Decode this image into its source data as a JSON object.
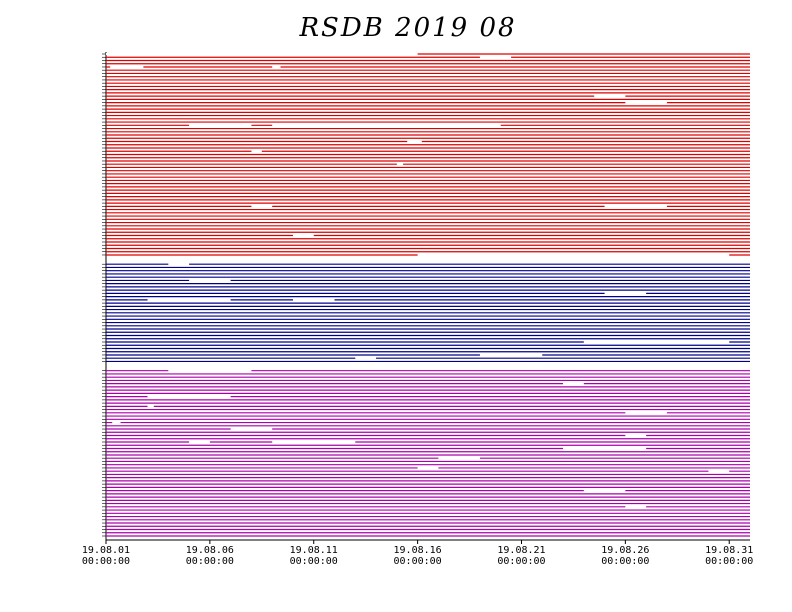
{
  "chart_data": {
    "type": "availability",
    "title": "RSDB 2019 08",
    "xlim": [
      1,
      32
    ],
    "xticks": [
      {
        "value": 1,
        "label": "19.08.01",
        "time": "00:00:00"
      },
      {
        "value": 6,
        "label": "19.08.06",
        "time": "00:00:00"
      },
      {
        "value": 11,
        "label": "19.08.11",
        "time": "00:00:00"
      },
      {
        "value": 16,
        "label": "19.08.16",
        "time": "00:00:00"
      },
      {
        "value": 21,
        "label": "19.08.21",
        "time": "00:00:00"
      },
      {
        "value": 26,
        "label": "19.08.26",
        "time": "00:00:00"
      },
      {
        "value": 31,
        "label": "19.08.31",
        "time": "00:00:00"
      }
    ],
    "groups": [
      {
        "color": "#dd0000",
        "rows": 63,
        "gaps": [
          [
            0,
            1,
            16
          ],
          [
            1,
            19,
            20.5
          ],
          [
            4,
            1.2,
            2.8
          ],
          [
            4,
            9,
            9.4
          ],
          [
            13,
            24.5,
            26
          ],
          [
            15,
            26,
            28
          ],
          [
            22,
            5,
            8
          ],
          [
            22,
            9,
            20
          ],
          [
            27,
            15.5,
            16.2
          ],
          [
            30,
            8,
            8.5
          ],
          [
            34,
            15,
            15.3
          ],
          [
            47,
            8,
            9
          ],
          [
            47,
            25,
            28
          ],
          [
            56,
            10,
            11
          ],
          [
            62,
            16,
            31
          ]
        ]
      },
      {
        "color": "#000088",
        "rows": 31,
        "gaps": [
          [
            0,
            4,
            5
          ],
          [
            5,
            5,
            7
          ],
          [
            11,
            3,
            7
          ],
          [
            11,
            10,
            12
          ],
          [
            9,
            25,
            27
          ],
          [
            24,
            24,
            31
          ],
          [
            28,
            19,
            22
          ],
          [
            29,
            13,
            14
          ]
        ]
      },
      {
        "color": "#aa00aa",
        "rows": 52,
        "gaps": [
          [
            0,
            4,
            8
          ],
          [
            4,
            23,
            24
          ],
          [
            8,
            3,
            7
          ],
          [
            11,
            3,
            3.3
          ],
          [
            13,
            26,
            28
          ],
          [
            16,
            1.3,
            1.7
          ],
          [
            18,
            7,
            9
          ],
          [
            20,
            26,
            27
          ],
          [
            22,
            9,
            13
          ],
          [
            22,
            5,
            6
          ],
          [
            24,
            23,
            27
          ],
          [
            27,
            17,
            19
          ],
          [
            30,
            16,
            17
          ],
          [
            31,
            30,
            31
          ],
          [
            37,
            24,
            26
          ],
          [
            42,
            26,
            27
          ]
        ]
      }
    ]
  }
}
